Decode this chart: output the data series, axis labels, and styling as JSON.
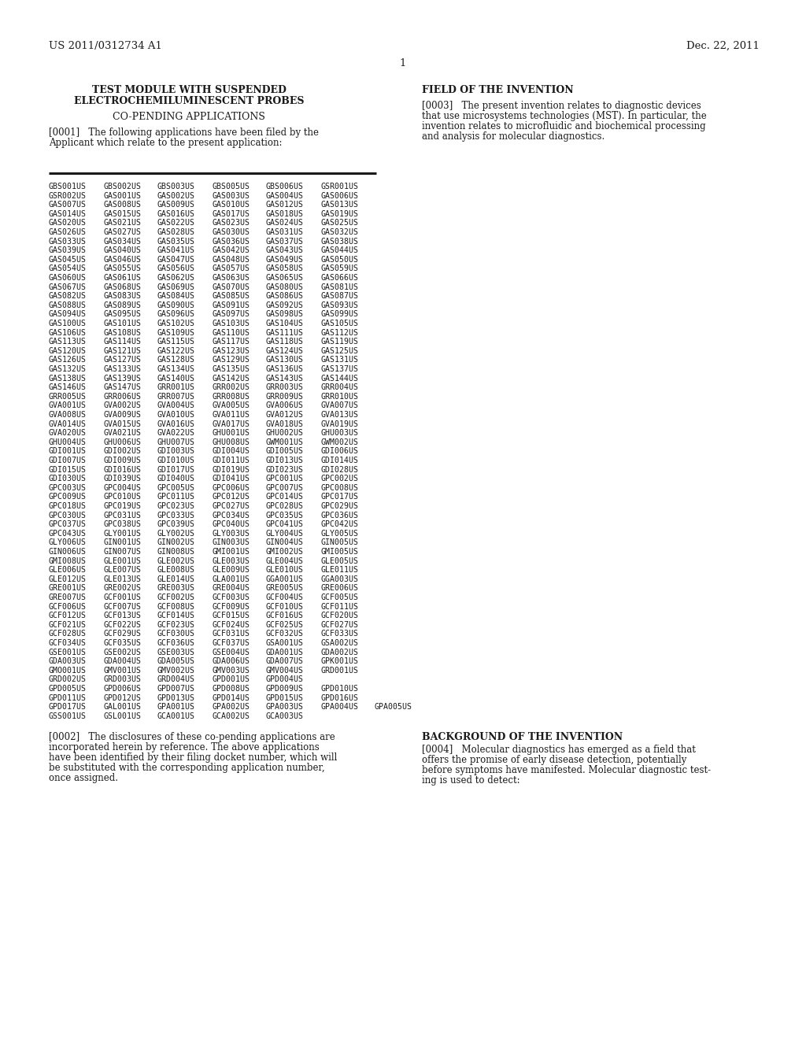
{
  "background_color": "#ffffff",
  "header_left": "US 2011/0312734 A1",
  "header_right": "Dec. 22, 2011",
  "page_number": "1",
  "title_left_line1": "TEST MODULE WITH SUSPENDED",
  "title_left_line2": "ELECTROCHEMILUMINESCENT PROBES",
  "section_left": "CO-PENDING APPLICATIONS",
  "title_right": "FIELD OF THE INVENTION",
  "para0001_line1": "[0001]   The following applications have been filed by the",
  "para0001_line2": "Applicant which relate to the present application:",
  "para0003_lines": [
    "[0003]   The present invention relates to diagnostic devices",
    "that use microsystems technologies (MST). In particular, the",
    "invention relates to microfluidic and biochemical processing",
    "and analysis for molecular diagnostics."
  ],
  "table_data": [
    [
      "GBS001US",
      "GBS002US",
      "GBS003US",
      "GBS005US",
      "GBS006US",
      "GSR001US"
    ],
    [
      "GSR002US",
      "GAS001US",
      "GAS002US",
      "GAS003US",
      "GAS004US",
      "GAS006US"
    ],
    [
      "GAS007US",
      "GAS008US",
      "GAS009US",
      "GAS010US",
      "GAS012US",
      "GAS013US"
    ],
    [
      "GAS014US",
      "GAS015US",
      "GAS016US",
      "GAS017US",
      "GAS018US",
      "GAS019US"
    ],
    [
      "GAS020US",
      "GAS021US",
      "GAS022US",
      "GAS023US",
      "GAS024US",
      "GAS025US"
    ],
    [
      "GAS026US",
      "GAS027US",
      "GAS028US",
      "GAS030US",
      "GAS031US",
      "GAS032US"
    ],
    [
      "GAS033US",
      "GAS034US",
      "GAS035US",
      "GAS036US",
      "GAS037US",
      "GAS038US"
    ],
    [
      "GAS039US",
      "GAS040US",
      "GAS041US",
      "GAS042US",
      "GAS043US",
      "GAS044US"
    ],
    [
      "GAS045US",
      "GAS046US",
      "GAS047US",
      "GAS048US",
      "GAS049US",
      "GAS050US"
    ],
    [
      "GAS054US",
      "GAS055US",
      "GAS056US",
      "GAS057US",
      "GAS058US",
      "GAS059US"
    ],
    [
      "GAS060US",
      "GAS061US",
      "GAS062US",
      "GAS063US",
      "GAS065US",
      "GAS066US"
    ],
    [
      "GAS067US",
      "GAS068US",
      "GAS069US",
      "GAS070US",
      "GAS080US",
      "GAS081US"
    ],
    [
      "GAS082US",
      "GAS083US",
      "GAS084US",
      "GAS085US",
      "GAS086US",
      "GAS087US"
    ],
    [
      "GAS088US",
      "GAS089US",
      "GAS090US",
      "GAS091US",
      "GAS092US",
      "GAS093US"
    ],
    [
      "GAS094US",
      "GAS095US",
      "GAS096US",
      "GAS097US",
      "GAS098US",
      "GAS099US"
    ],
    [
      "GAS100US",
      "GAS101US",
      "GAS102US",
      "GAS103US",
      "GAS104US",
      "GAS105US"
    ],
    [
      "GAS106US",
      "GAS108US",
      "GAS109US",
      "GAS110US",
      "GAS111US",
      "GAS112US"
    ],
    [
      "GAS113US",
      "GAS114US",
      "GAS115US",
      "GAS117US",
      "GAS118US",
      "GAS119US"
    ],
    [
      "GAS120US",
      "GAS121US",
      "GAS122US",
      "GAS123US",
      "GAS124US",
      "GAS125US"
    ],
    [
      "GAS126US",
      "GAS127US",
      "GAS128US",
      "GAS129US",
      "GAS130US",
      "GAS131US"
    ],
    [
      "GAS132US",
      "GAS133US",
      "GAS134US",
      "GAS135US",
      "GAS136US",
      "GAS137US"
    ],
    [
      "GAS138US",
      "GAS139US",
      "GAS140US",
      "GAS142US",
      "GAS143US",
      "GAS144US"
    ],
    [
      "GAS146US",
      "GAS147US",
      "GRR001US",
      "GRR002US",
      "GRR003US",
      "GRR004US"
    ],
    [
      "GRR005US",
      "GRR006US",
      "GRR007US",
      "GRR008US",
      "GRR009US",
      "GRR010US"
    ],
    [
      "GVA001US",
      "GVA002US",
      "GVA004US",
      "GVA005US",
      "GVA006US",
      "GVA007US"
    ],
    [
      "GVA008US",
      "GVA009US",
      "GVA010US",
      "GVA011US",
      "GVA012US",
      "GVA013US"
    ],
    [
      "GVA014US",
      "GVA015US",
      "GVA016US",
      "GVA017US",
      "GVA018US",
      "GVA019US"
    ],
    [
      "GVA020US",
      "GVA021US",
      "GVA022US",
      "GHU001US",
      "GHU002US",
      "GHU003US"
    ],
    [
      "GHU004US",
      "GHU006US",
      "GHU007US",
      "GHU008US",
      "GWM001US",
      "GWM002US"
    ],
    [
      "GDI001US",
      "GDI002US",
      "GDI003US",
      "GDI004US",
      "GDI005US",
      "GDI006US"
    ],
    [
      "GDI007US",
      "GDI009US",
      "GDI010US",
      "GDI011US",
      "GDI013US",
      "GDI014US"
    ],
    [
      "GDI015US",
      "GDI016US",
      "GDI017US",
      "GDI019US",
      "GDI023US",
      "GDI028US"
    ],
    [
      "GDI030US",
      "GDI039US",
      "GDI040US",
      "GDI041US",
      "GPC001US",
      "GPC002US"
    ],
    [
      "GPC003US",
      "GPC004US",
      "GPC005US",
      "GPC006US",
      "GPC007US",
      "GPC008US"
    ],
    [
      "GPC009US",
      "GPC010US",
      "GPC011US",
      "GPC012US",
      "GPC014US",
      "GPC017US"
    ],
    [
      "GPC018US",
      "GPC019US",
      "GPC023US",
      "GPC027US",
      "GPC028US",
      "GPC029US"
    ],
    [
      "GPC030US",
      "GPC031US",
      "GPC033US",
      "GPC034US",
      "GPC035US",
      "GPC036US"
    ],
    [
      "GPC037US",
      "GPC038US",
      "GPC039US",
      "GPC040US",
      "GPC041US",
      "GPC042US"
    ],
    [
      "GPC043US",
      "GLY001US",
      "GLY002US",
      "GLY003US",
      "GLY004US",
      "GLY005US"
    ],
    [
      "GLY006US",
      "GIN001US",
      "GIN002US",
      "GIN003US",
      "GIN004US",
      "GIN005US"
    ],
    [
      "GIN006US",
      "GIN007US",
      "GIN008US",
      "GMI001US",
      "GMI002US",
      "GMI005US"
    ],
    [
      "GMI008US",
      "GLE001US",
      "GLE002US",
      "GLE003US",
      "GLE004US",
      "GLE005US"
    ],
    [
      "GLE006US",
      "GLE007US",
      "GLE008US",
      "GLE009US",
      "GLE010US",
      "GLE011US"
    ],
    [
      "GLE012US",
      "GLE013US",
      "GLE014US",
      "GLA001US",
      "GGA001US",
      "GGA003US"
    ],
    [
      "GRE001US",
      "GRE002US",
      "GRE003US",
      "GRE004US",
      "GRE005US",
      "GRE006US"
    ],
    [
      "GRE007US",
      "GCF001US",
      "GCF002US",
      "GCF003US",
      "GCF004US",
      "GCF005US"
    ],
    [
      "GCF006US",
      "GCF007US",
      "GCF008US",
      "GCF009US",
      "GCF010US",
      "GCF011US"
    ],
    [
      "GCF012US",
      "GCF013US",
      "GCF014US",
      "GCF015US",
      "GCF016US",
      "GCF020US"
    ],
    [
      "GCF021US",
      "GCF022US",
      "GCF023US",
      "GCF024US",
      "GCF025US",
      "GCF027US"
    ],
    [
      "GCF028US",
      "GCF029US",
      "GCF030US",
      "GCF031US",
      "GCF032US",
      "GCF033US"
    ],
    [
      "GCF034US",
      "GCF035US",
      "GCF036US",
      "GCF037US",
      "GSA001US",
      "GSA002US"
    ],
    [
      "GSE001US",
      "GSE002US",
      "GSE003US",
      "GSE004US",
      "GDA001US",
      "GDA002US"
    ],
    [
      "GDA003US",
      "GDA004US",
      "GDA005US",
      "GDA006US",
      "GDA007US",
      "GPK001US"
    ],
    [
      "GMO001US",
      "GMV001US",
      "GMV002US",
      "GMV003US",
      "GMV004US",
      "GRD001US"
    ],
    [
      "GRD002US",
      "GRD003US",
      "GRD004US",
      "GPD001US",
      "GPD004US",
      ""
    ],
    [
      "GPD005US",
      "GPD006US",
      "GPD007US",
      "GPD008US",
      "GPD009US",
      "GPD010US"
    ],
    [
      "GPD011US",
      "GPD012US",
      "GPD013US",
      "GPD014US",
      "GPD015US",
      "GPD016US"
    ],
    [
      "GPD017US",
      "GAL001US",
      "GPA001US",
      "GPA002US",
      "GPA003US",
      "GPA004US",
      "GPA005US"
    ],
    [
      "GSS001US",
      "GSL001US",
      "GCA001US",
      "GCA002US",
      "GCA003US"
    ]
  ],
  "para0002_lines": [
    "[0002]   The disclosures of these co-pending applications are",
    "incorporated herein by reference. The above applications",
    "have been identified by their filing docket number, which will",
    "be substituted with the corresponding application number,",
    "once assigned."
  ],
  "section_right2": "BACKGROUND OF THE INVENTION",
  "para0004_lines": [
    "[0004]   Molecular diagnostics has emerged as a field that",
    "offers the promise of early disease detection, potentially",
    "before symptoms have manifested. Molecular diagnostic test-",
    "ing is used to detect:"
  ]
}
